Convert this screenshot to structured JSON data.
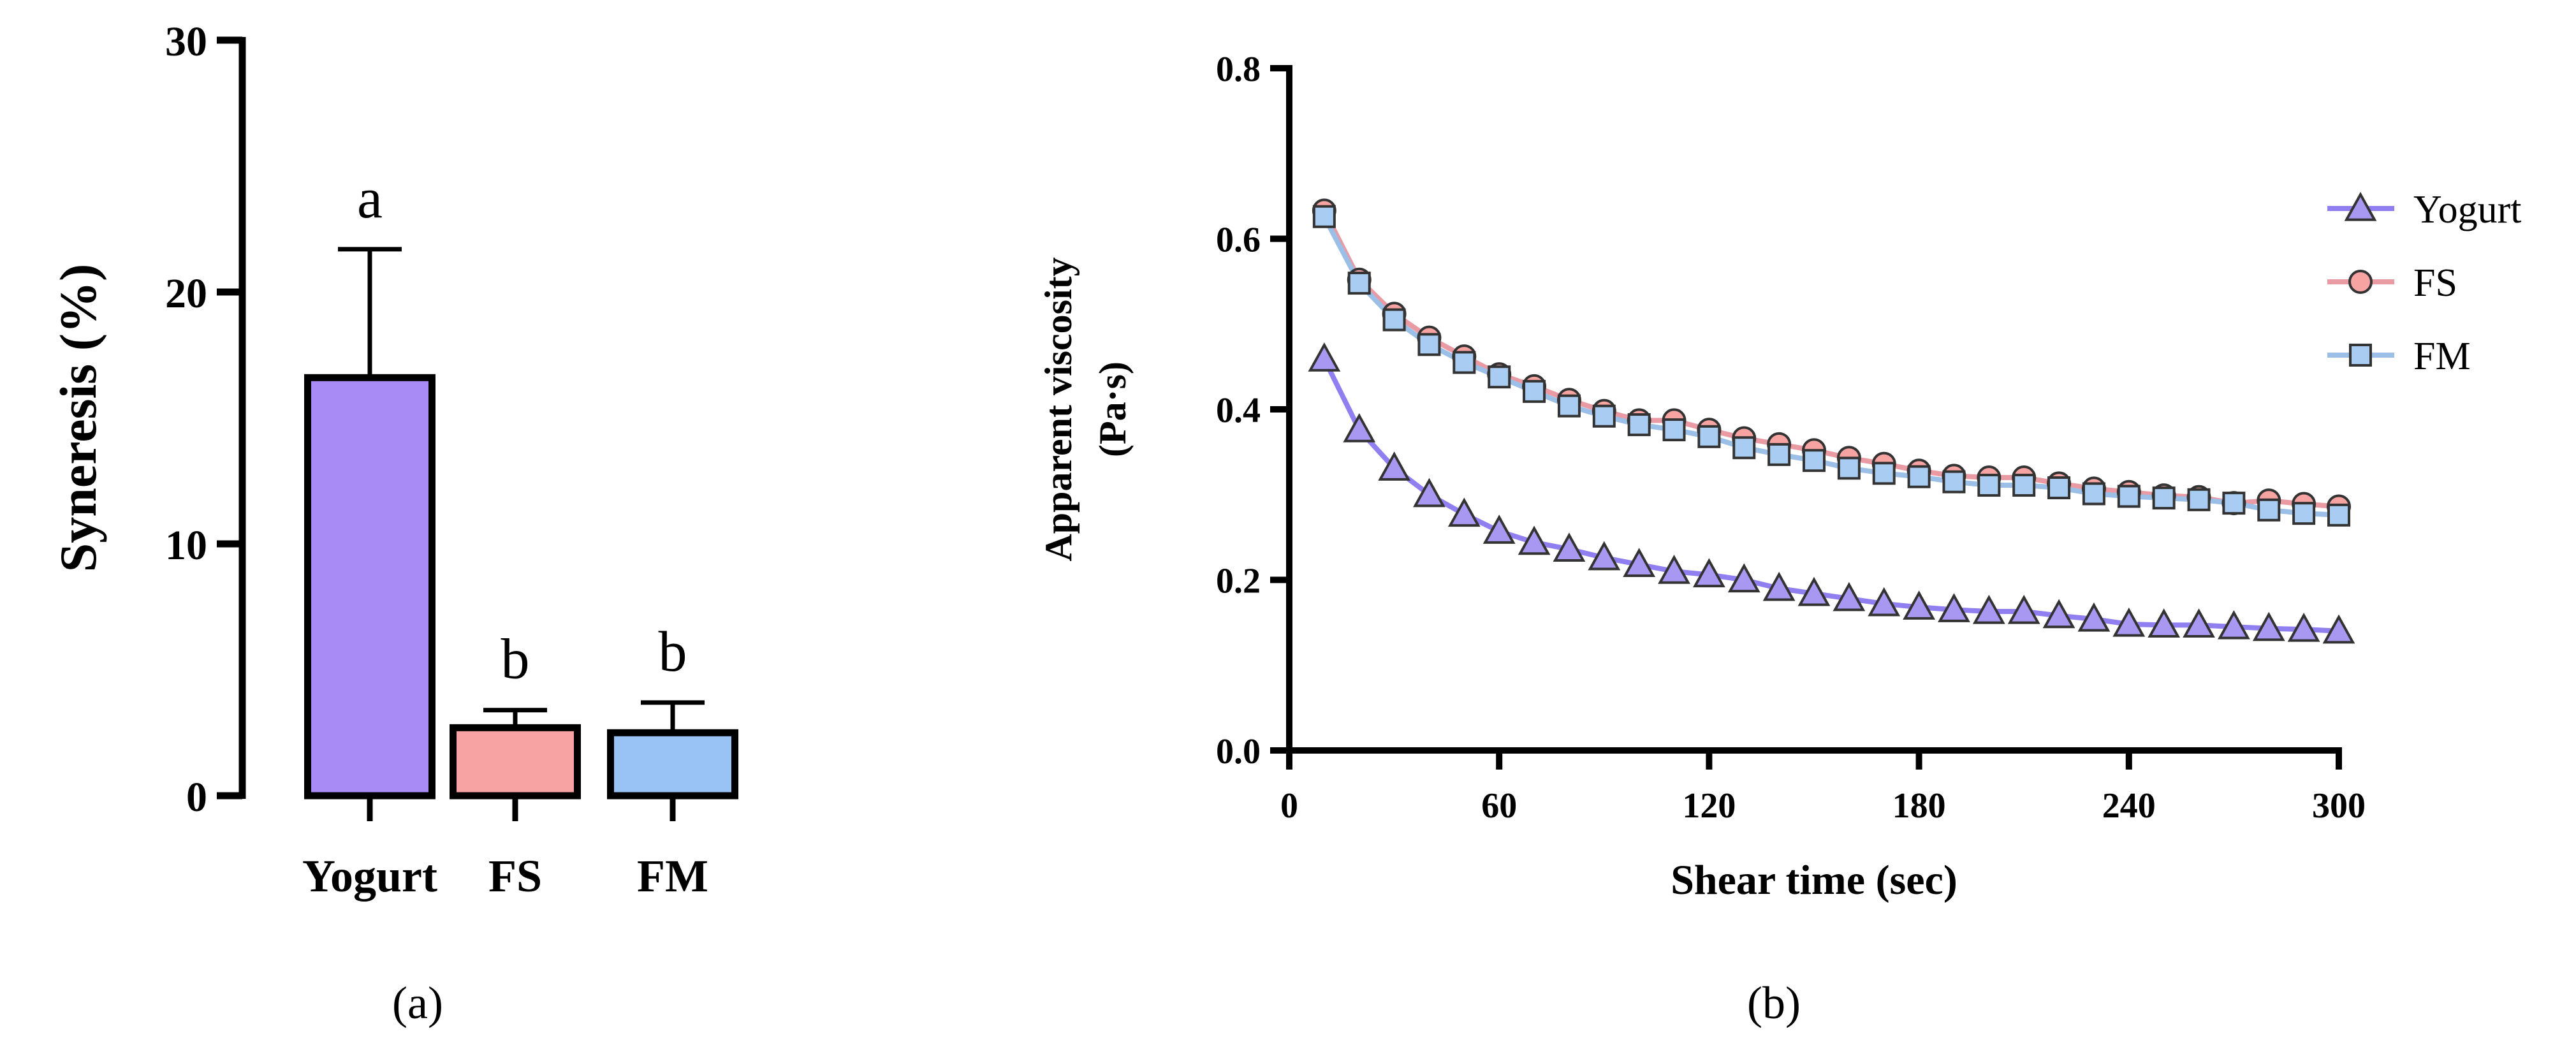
{
  "chart_data": [
    {
      "type": "bar",
      "panel_label": "(a)",
      "title": "",
      "xlabel": "",
      "ylabel": "Syneresis (%)",
      "ylim": [
        0,
        30
      ],
      "yticks": [
        0,
        10,
        20,
        30
      ],
      "categories": [
        "Yogurt",
        "FS",
        "FM"
      ],
      "values": [
        16.6,
        2.7,
        2.5
      ],
      "errors": [
        5.1,
        0.7,
        1.2
      ],
      "significance_letters": [
        "a",
        "b",
        "b"
      ],
      "colors": [
        "#a98bf5",
        "#f7a3a3",
        "#99c2f5"
      ]
    },
    {
      "type": "line",
      "panel_label": "(b)",
      "title": "",
      "xlabel": "Shear time (sec)",
      "ylabel_line1": "Apparent viscosity",
      "ylabel_line2": "(Pa·s)",
      "xlim": [
        0,
        300
      ],
      "ylim": [
        0,
        0.8
      ],
      "xticks": [
        0,
        60,
        120,
        180,
        240,
        300
      ],
      "yticks": [
        "0.0",
        "0.2",
        "0.4",
        "0.6",
        "0.8"
      ],
      "x": [
        10,
        20,
        30,
        40,
        50,
        60,
        70,
        80,
        90,
        100,
        110,
        120,
        130,
        140,
        150,
        160,
        170,
        180,
        190,
        200,
        210,
        220,
        230,
        240,
        250,
        260,
        270,
        280,
        290,
        300
      ],
      "legend_position": "top-right",
      "series": [
        {
          "name": "Yogurt",
          "marker": "triangle",
          "line_color": "#8f7ff0",
          "marker_fill": "#a898f2",
          "values": [
            0.459,
            0.376,
            0.331,
            0.3,
            0.277,
            0.257,
            0.244,
            0.236,
            0.226,
            0.218,
            0.21,
            0.206,
            0.2,
            0.19,
            0.184,
            0.178,
            0.172,
            0.168,
            0.165,
            0.163,
            0.163,
            0.158,
            0.154,
            0.148,
            0.147,
            0.147,
            0.145,
            0.143,
            0.142,
            0.14
          ]
        },
        {
          "name": "FS",
          "marker": "circle",
          "line_color": "#e99aa3",
          "marker_fill": "#f6a3a1",
          "values": [
            0.633,
            0.552,
            0.512,
            0.484,
            0.462,
            0.441,
            0.427,
            0.411,
            0.398,
            0.387,
            0.387,
            0.376,
            0.366,
            0.359,
            0.352,
            0.343,
            0.336,
            0.328,
            0.322,
            0.32,
            0.32,
            0.313,
            0.307,
            0.303,
            0.299,
            0.297,
            0.29,
            0.293,
            0.289,
            0.286
          ]
        },
        {
          "name": "FM",
          "marker": "square",
          "line_color": "#9cbfe8",
          "marker_fill": "#a9cdf2",
          "values": [
            0.626,
            0.548,
            0.505,
            0.476,
            0.455,
            0.438,
            0.421,
            0.404,
            0.392,
            0.382,
            0.376,
            0.368,
            0.355,
            0.347,
            0.34,
            0.331,
            0.325,
            0.321,
            0.315,
            0.311,
            0.311,
            0.308,
            0.301,
            0.298,
            0.296,
            0.294,
            0.29,
            0.282,
            0.278,
            0.276
          ]
        }
      ]
    }
  ]
}
